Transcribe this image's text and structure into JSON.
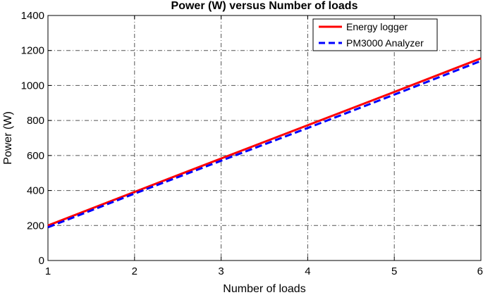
{
  "chart_data": {
    "type": "line",
    "title": "Power (W) versus Number of loads",
    "xlabel": "Number of loads",
    "ylabel": "Power (W)",
    "xlim": [
      1,
      6
    ],
    "ylim": [
      0,
      1400
    ],
    "xticks": [
      "1",
      "2",
      "3",
      "4",
      "5",
      "6"
    ],
    "yticks": [
      "0",
      "200",
      "400",
      "600",
      "800",
      "1000",
      "1200",
      "1400"
    ],
    "grid": true,
    "legend_position": "top-right",
    "series": [
      {
        "name": "Energy logger",
        "color": "#ff0000",
        "style": "solid",
        "x": [
          1,
          2,
          3,
          4,
          5,
          6
        ],
        "values": [
          200,
          392,
          583,
          773,
          963,
          1155
        ]
      },
      {
        "name": "PM3000 Analyzer",
        "color": "#0000ff",
        "style": "dashed",
        "x": [
          1,
          2,
          3,
          4,
          5,
          6
        ],
        "values": [
          190,
          382,
          570,
          757,
          948,
          1140
        ]
      }
    ]
  }
}
